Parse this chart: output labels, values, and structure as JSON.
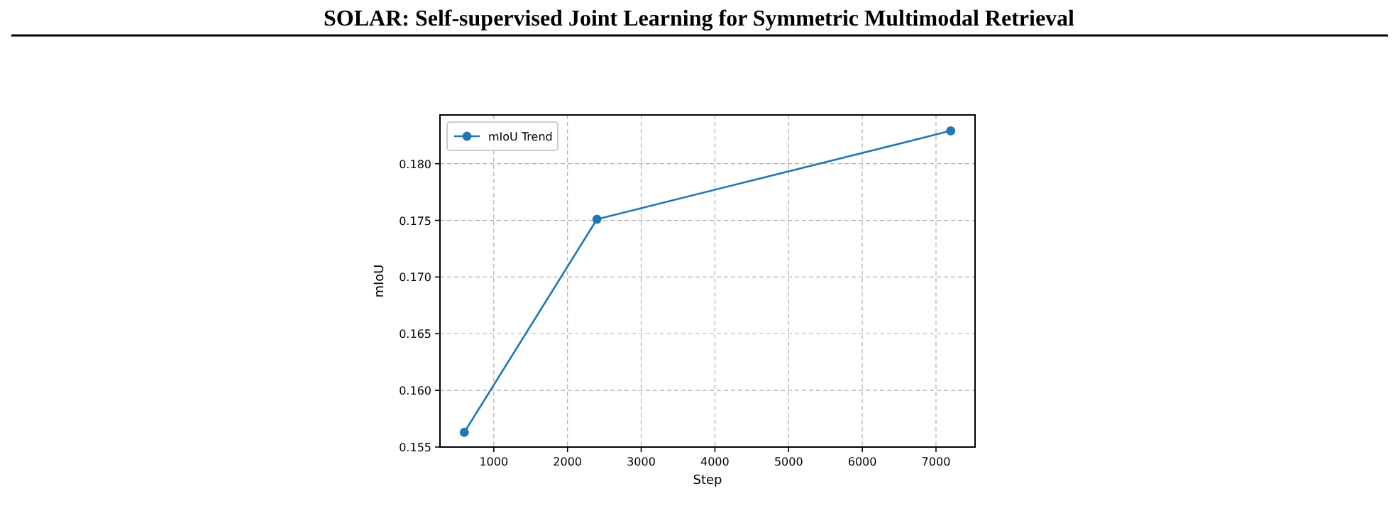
{
  "chart_data": {
    "type": "line",
    "title": "SOLAR: Self-supervised Joint Learning for Symmetric Multimodal Retrieval",
    "xlabel": "Step",
    "ylabel": "mIoU",
    "x": [
      600,
      2400,
      7200
    ],
    "series": [
      {
        "name": "mIoU Trend",
        "color": "#1f77b4",
        "values": [
          0.1563,
          0.1751,
          0.1829
        ]
      }
    ],
    "xlim": [
      270,
      7530
    ],
    "xticks": [
      1000,
      2000,
      3000,
      4000,
      5000,
      6000,
      7000
    ],
    "ylim": [
      0.155,
      0.1843
    ],
    "yticks": [
      0.155,
      {
        "value": 0.16,
        "label": "0.160"
      },
      0.165,
      {
        "value": 0.17,
        "label": "0.170"
      },
      0.175,
      {
        "value": 0.18,
        "label": "0.180"
      }
    ],
    "grid": true,
    "legend": "top left",
    "marker": "circle",
    "line_style": "solid"
  }
}
